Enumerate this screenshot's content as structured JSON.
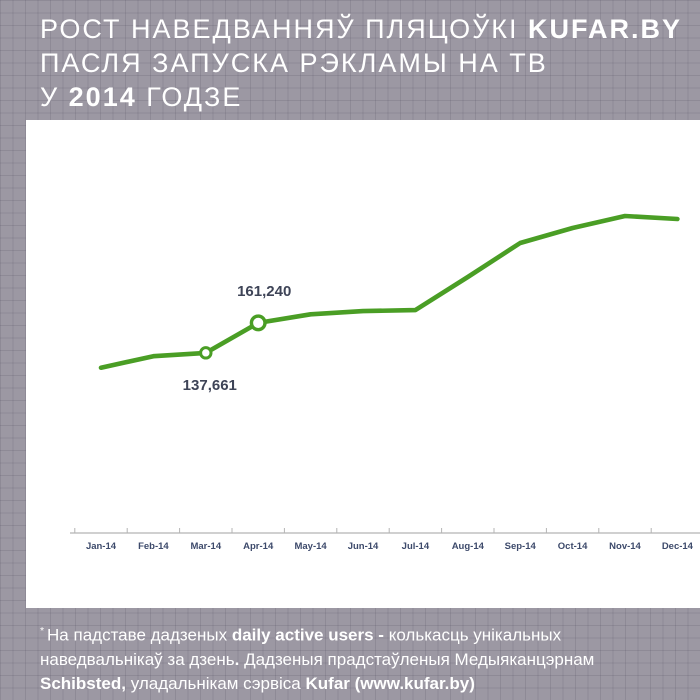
{
  "header": {
    "title_lines": [
      [
        {
          "t": "РОСТ НАВЕДВАННЯЎ ПЛЯЦОЎКІ "
        },
        {
          "t": "KUFAR.BY",
          "b": true
        }
      ],
      [
        {
          "t": "ПАСЛЯ ЗАПУСКА РЭКЛАМЫ НА ТВ"
        }
      ],
      [
        {
          "t": "У "
        },
        {
          "t": "2014",
          "b": true
        },
        {
          "t": " ГОДЗЕ"
        }
      ]
    ]
  },
  "chart_data": {
    "type": "line",
    "title": "",
    "xlabel": "",
    "ylabel": "",
    "categories": [
      "Jan-14",
      "Feb-14",
      "Mar-14",
      "Apr-14",
      "May-14",
      "Jun-14",
      "Jul-14",
      "Aug-14",
      "Sep-14",
      "Oct-14",
      "Nov-14",
      "Dec-14"
    ],
    "series": [
      {
        "name": "daily active users",
        "values": [
          126000,
          135000,
          137661,
          161240,
          168000,
          170500,
          171300,
          197300,
          224000,
          235800,
          245200,
          242900
        ]
      }
    ],
    "labeled_points": [
      {
        "category": "Mar-14",
        "value": 137661,
        "label": "137,661",
        "label_position": "below"
      },
      {
        "category": "Apr-14",
        "value": 161240,
        "label": "161,240",
        "label_position": "above"
      }
    ],
    "ylim": [
      0,
      260000
    ],
    "grid": false,
    "legend_position": "none",
    "colors": {
      "line": "#4a9e25",
      "marker_fill": "#ffffff",
      "axis_line": "#b4b4b4",
      "axis_labels": "#3d4a6b",
      "point_labels": "#3e4457"
    }
  },
  "footer": {
    "lines": [
      [
        {
          "t": "* ",
          "sup": true
        },
        {
          "t": "На падставе дадзеных "
        },
        {
          "t": "daily active users - ",
          "b": true
        },
        {
          "t": "колькасць унікальных"
        }
      ],
      [
        {
          "t": "наведвальнікаў за дзень"
        },
        {
          "t": ".",
          "b": true
        },
        {
          "t": "  Дадзеныя прадстаўленыя Медыяканцэрнам"
        }
      ],
      [
        {
          "t": "Schibsted,",
          "b": true
        },
        {
          "t": " уладальнікам сэрвіса "
        },
        {
          "t": "Kufar (www.kufar.by)",
          "b": true
        }
      ]
    ]
  },
  "colors": {
    "background": "#9c98a3",
    "card": "#ffffff",
    "title_text": "#ffffff",
    "footer_text": "#ffffff"
  }
}
